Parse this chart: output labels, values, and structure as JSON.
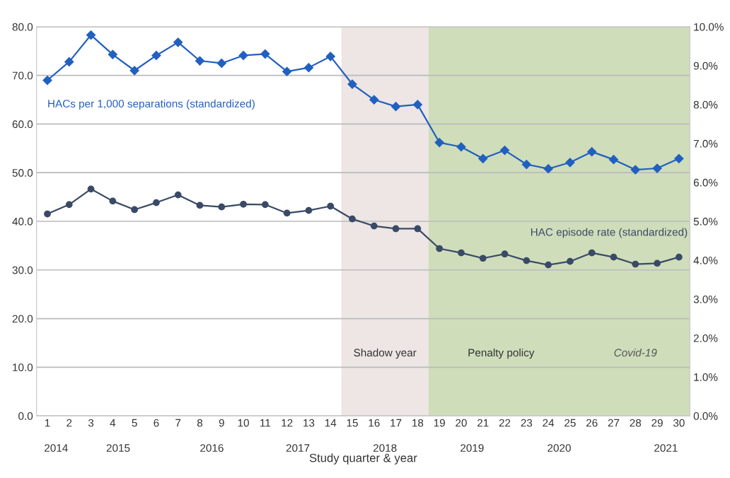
{
  "chart_data": {
    "type": "line",
    "categories": [
      "1",
      "2",
      "3",
      "4",
      "5",
      "6",
      "7",
      "8",
      "9",
      "10",
      "11",
      "12",
      "13",
      "14",
      "15",
      "16",
      "17",
      "18",
      "19",
      "20",
      "21",
      "22",
      "23",
      "24",
      "25",
      "26",
      "27",
      "28",
      "29",
      "30"
    ],
    "xlabel": "Study quarter & year",
    "series": [
      {
        "name": "HACs per 1,000 separations (standardized)",
        "color": "#2160c0",
        "marker": "diamond",
        "values": [
          69.0,
          72.8,
          78.3,
          74.3,
          71.0,
          74.1,
          76.8,
          73.0,
          72.5,
          74.1,
          74.4,
          70.8,
          71.6,
          73.9,
          68.2,
          65.0,
          63.6,
          64.0,
          56.2,
          55.3,
          52.9,
          54.6,
          51.7,
          50.8,
          52.1,
          54.3,
          52.7,
          50.6,
          50.9,
          52.9
        ]
      },
      {
        "name": "HAC episode rate (standardized)",
        "color": "#3a4a66",
        "marker": "circle",
        "axis": "y2",
        "values": [
          5.19,
          5.43,
          5.83,
          5.52,
          5.3,
          5.48,
          5.68,
          5.41,
          5.37,
          5.44,
          5.43,
          5.21,
          5.28,
          5.39,
          5.06,
          4.88,
          4.81,
          4.81,
          4.3,
          4.19,
          4.05,
          4.16,
          3.99,
          3.88,
          3.97,
          4.19,
          4.08,
          3.9,
          3.92,
          4.08
        ]
      }
    ],
    "ylim": [
      0,
      80
    ],
    "yticks": [
      {
        "value": 0,
        "label": "0.0"
      },
      {
        "value": 10,
        "label": "10.0"
      },
      {
        "value": 20,
        "label": "20.0"
      },
      {
        "value": 30,
        "label": "30.0"
      },
      {
        "value": 40,
        "label": "40.0"
      },
      {
        "value": 50,
        "label": "50.0"
      },
      {
        "value": 60,
        "label": "60.0"
      },
      {
        "value": 70,
        "label": "70.0"
      },
      {
        "value": 80,
        "label": "80.0"
      }
    ],
    "y2lim": [
      0,
      10
    ],
    "y2ticks": [
      {
        "value": 0,
        "label": "0.0%"
      },
      {
        "value": 1,
        "label": "1.0%"
      },
      {
        "value": 2,
        "label": "2.0%"
      },
      {
        "value": 3,
        "label": "3.0%"
      },
      {
        "value": 4,
        "label": "4.0%"
      },
      {
        "value": 5,
        "label": "5.0%"
      },
      {
        "value": 6,
        "label": "6.0%"
      },
      {
        "value": 7,
        "label": "7.0%"
      },
      {
        "value": 8,
        "label": "8.0%"
      },
      {
        "value": 9,
        "label": "9.0%"
      },
      {
        "value": 10,
        "label": "10.0%"
      }
    ],
    "bands": [
      {
        "axis": "x",
        "from": "15",
        "to": "18",
        "label": "Shadow year",
        "color": "#ede6e4"
      },
      {
        "axis": "x",
        "from": "19",
        "to": "30",
        "label": "Penalty policy",
        "color": "#cfddbb"
      }
    ],
    "annotations": [
      "Covid-19",
      "2014",
      "2015",
      "2016",
      "2017",
      "2018",
      "2019",
      "2020",
      "2021"
    ],
    "grid": "y",
    "line_style": "solid"
  }
}
